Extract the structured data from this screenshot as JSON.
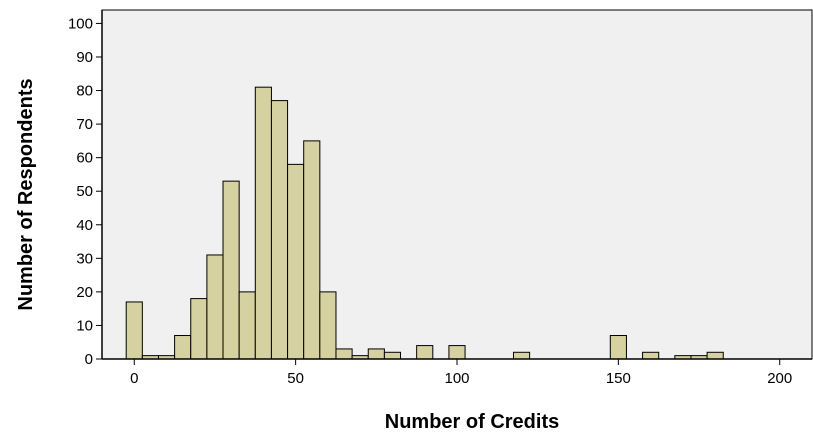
{
  "chart_data": {
    "type": "bar",
    "title": "",
    "xlabel": "Number of Credits",
    "ylabel": "Number of Respondents",
    "xlim": [
      -10,
      210
    ],
    "ylim": [
      0,
      104
    ],
    "bin_width": 5,
    "grid": false,
    "legend": "none",
    "colors": {
      "bar_fill": "#d6d1a1",
      "bar_stroke": "#000000",
      "plot_bg": "#f0f0f0"
    },
    "x_ticks": [
      {
        "value": 0,
        "label": "0"
      },
      {
        "value": 50,
        "label": "50"
      },
      {
        "value": 100,
        "label": "100"
      },
      {
        "value": 150,
        "label": "150"
      },
      {
        "value": 200,
        "label": "200"
      }
    ],
    "y_ticks": [
      {
        "value": 0,
        "label": "0"
      },
      {
        "value": 10,
        "label": "10"
      },
      {
        "value": 20,
        "label": "20"
      },
      {
        "value": 30,
        "label": "30"
      },
      {
        "value": 40,
        "label": "40"
      },
      {
        "value": 50,
        "label": "50"
      },
      {
        "value": 60,
        "label": "60"
      },
      {
        "value": 70,
        "label": "70"
      },
      {
        "value": 80,
        "label": "80"
      },
      {
        "value": 90,
        "label": "90"
      },
      {
        "value": 100,
        "label": "100"
      }
    ],
    "bins": [
      {
        "x": 0,
        "count": 17
      },
      {
        "x": 5,
        "count": 1
      },
      {
        "x": 10,
        "count": 1
      },
      {
        "x": 15,
        "count": 7
      },
      {
        "x": 20,
        "count": 18
      },
      {
        "x": 25,
        "count": 31
      },
      {
        "x": 30,
        "count": 53
      },
      {
        "x": 35,
        "count": 20
      },
      {
        "x": 40,
        "count": 81
      },
      {
        "x": 45,
        "count": 77
      },
      {
        "x": 50,
        "count": 58
      },
      {
        "x": 55,
        "count": 65
      },
      {
        "x": 60,
        "count": 20
      },
      {
        "x": 65,
        "count": 3
      },
      {
        "x": 70,
        "count": 1
      },
      {
        "x": 75,
        "count": 3
      },
      {
        "x": 80,
        "count": 2
      },
      {
        "x": 90,
        "count": 4
      },
      {
        "x": 100,
        "count": 4
      },
      {
        "x": 120,
        "count": 2
      },
      {
        "x": 150,
        "count": 7
      },
      {
        "x": 160,
        "count": 2
      },
      {
        "x": 170,
        "count": 1
      },
      {
        "x": 175,
        "count": 1
      },
      {
        "x": 180,
        "count": 2
      }
    ]
  }
}
